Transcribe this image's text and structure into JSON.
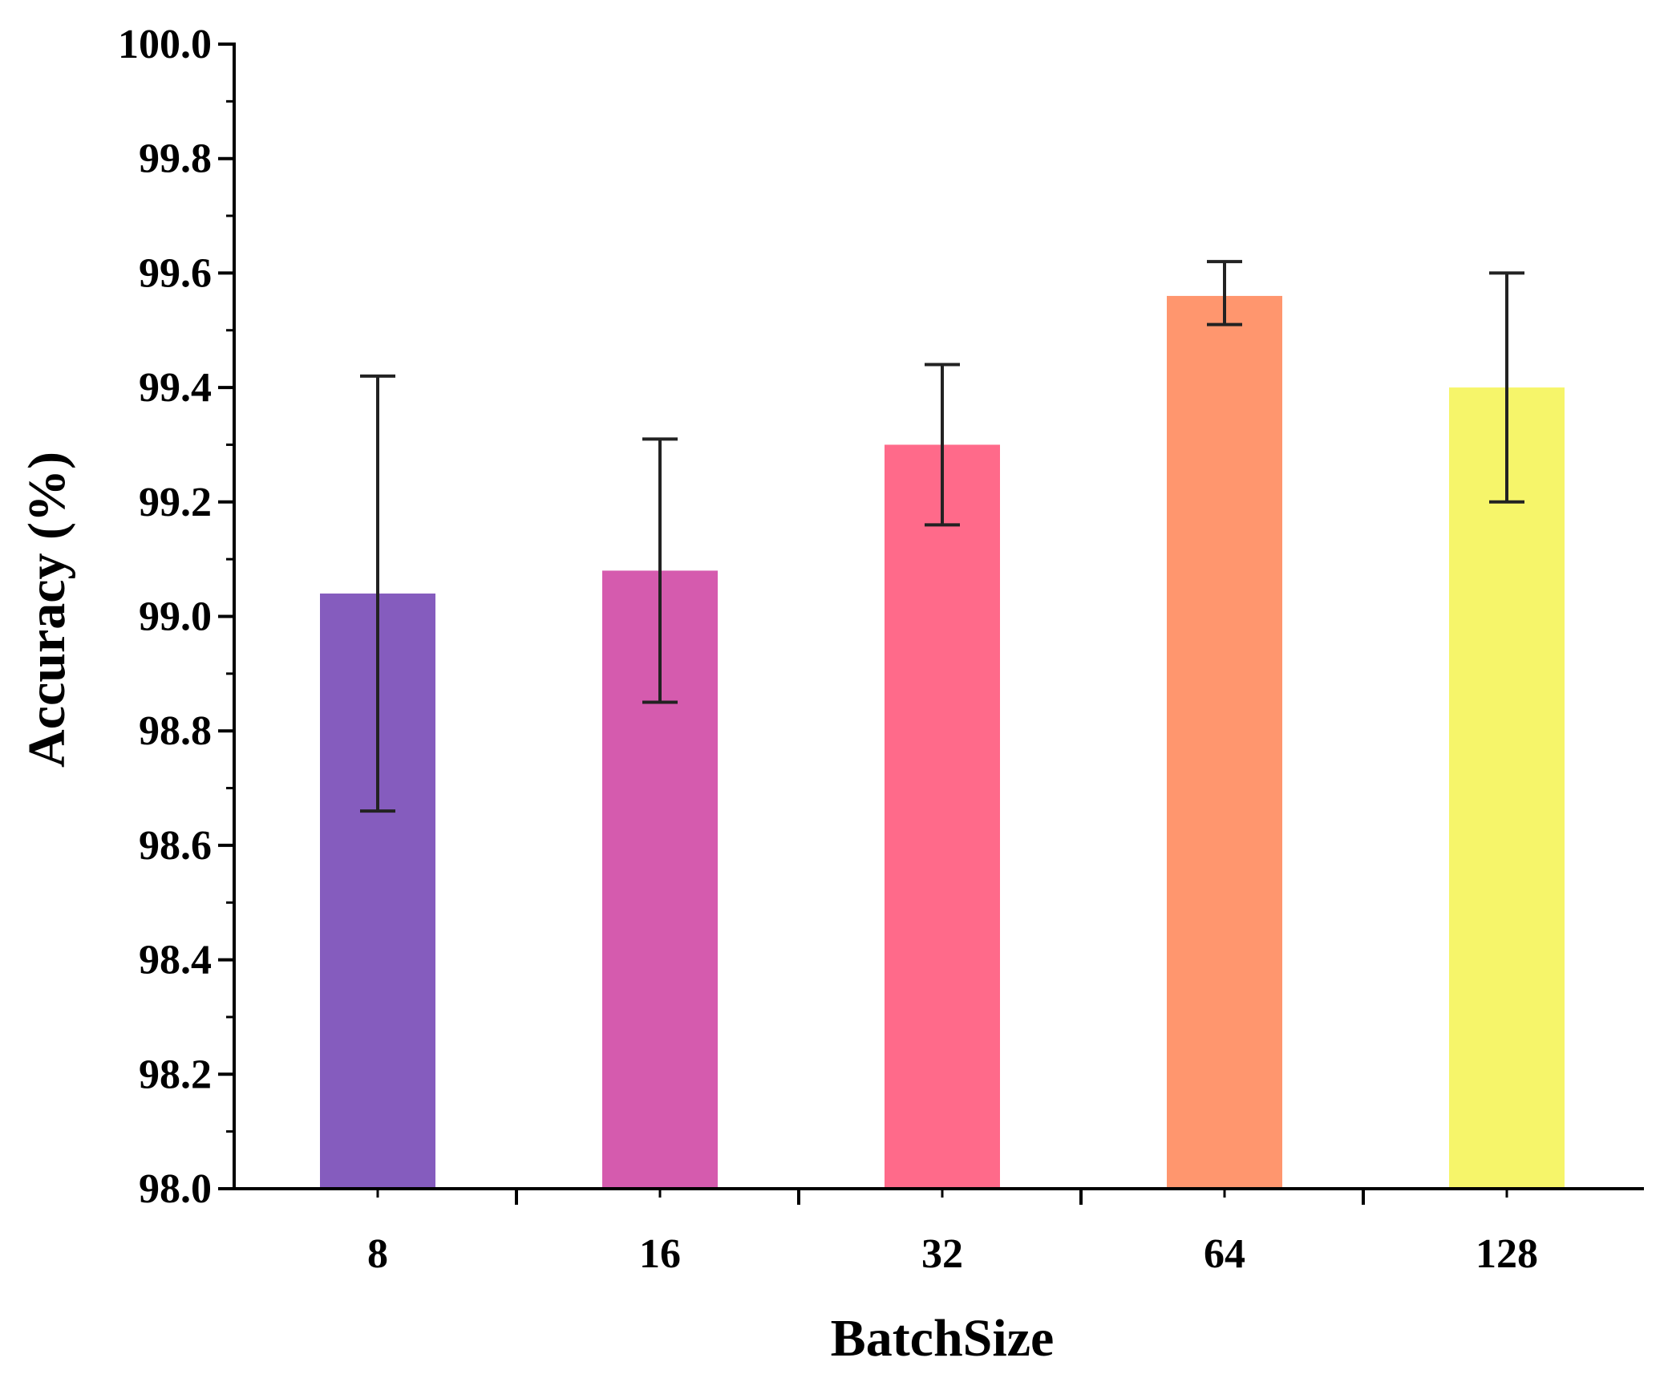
{
  "chart_data": {
    "type": "bar",
    "title": "",
    "xlabel": "BatchSize",
    "ylabel": "Accuracy (%)",
    "categories": [
      "8",
      "16",
      "32",
      "64",
      "128"
    ],
    "values": [
      99.04,
      99.08,
      99.3,
      99.56,
      99.4
    ],
    "error_low": [
      98.66,
      98.85,
      99.16,
      99.51,
      99.2
    ],
    "error_high": [
      99.42,
      99.31,
      99.44,
      99.62,
      99.6
    ],
    "colors": [
      "#855CBE",
      "#D55BAE",
      "#FF6A8A",
      "#FF966E",
      "#F6F56A"
    ],
    "ylim": [
      98.0,
      100.0
    ],
    "y_ticks": [
      "98.0",
      "98.2",
      "98.4",
      "98.6",
      "98.8",
      "99.0",
      "99.2",
      "99.4",
      "99.6",
      "99.8",
      "100.0"
    ],
    "grid": false,
    "legend": "none"
  }
}
